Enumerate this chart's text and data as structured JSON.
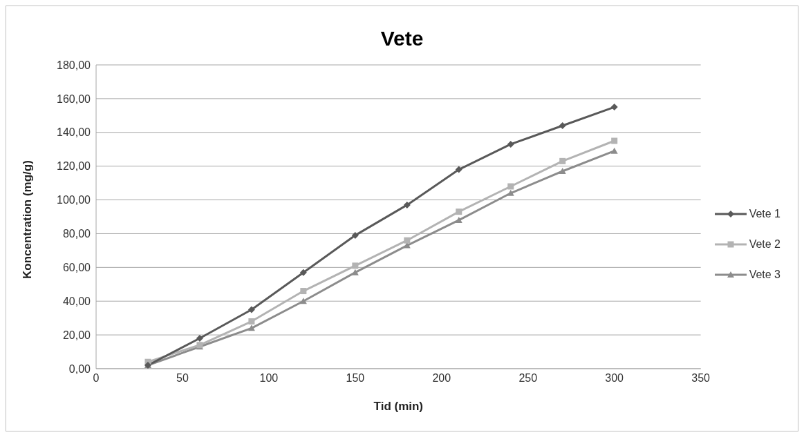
{
  "chart_data": {
    "type": "line",
    "title": "Vete",
    "xlabel": "Tid (min)",
    "ylabel": "Koncentration (mg/g)",
    "x": [
      30,
      60,
      90,
      120,
      150,
      180,
      210,
      240,
      270,
      300
    ],
    "series": [
      {
        "name": "Vete 1",
        "color": "#595959",
        "marker": "diamond",
        "values": [
          2,
          18,
          35,
          57,
          79,
          97,
          118,
          133,
          144,
          155
        ]
      },
      {
        "name": "Vete 2",
        "color": "#b3b3b3",
        "marker": "square",
        "values": [
          4,
          14,
          28,
          46,
          61,
          76,
          93,
          108,
          123,
          135
        ]
      },
      {
        "name": "Vete 3",
        "color": "#8c8c8c",
        "marker": "triangle",
        "values": [
          2,
          13,
          24,
          40,
          57,
          73,
          88,
          104,
          117,
          129
        ]
      }
    ],
    "xlim": [
      0,
      350
    ],
    "xticks": [
      0,
      50,
      100,
      150,
      200,
      250,
      300,
      350
    ],
    "ylim": [
      0,
      180
    ],
    "yticks": [
      {
        "value": 0,
        "label": "0,00"
      },
      {
        "value": 20,
        "label": "20,00"
      },
      {
        "value": 40,
        "label": "40,00"
      },
      {
        "value": 60,
        "label": "60,00"
      },
      {
        "value": 80,
        "label": "80,00"
      },
      {
        "value": 100,
        "label": "100,00"
      },
      {
        "value": 120,
        "label": "120,00"
      },
      {
        "value": 140,
        "label": "140,00"
      },
      {
        "value": 160,
        "label": "160,00"
      },
      {
        "value": 180,
        "label": "180,00"
      }
    ],
    "grid": "y",
    "legend": "right",
    "line_style": "solid"
  }
}
